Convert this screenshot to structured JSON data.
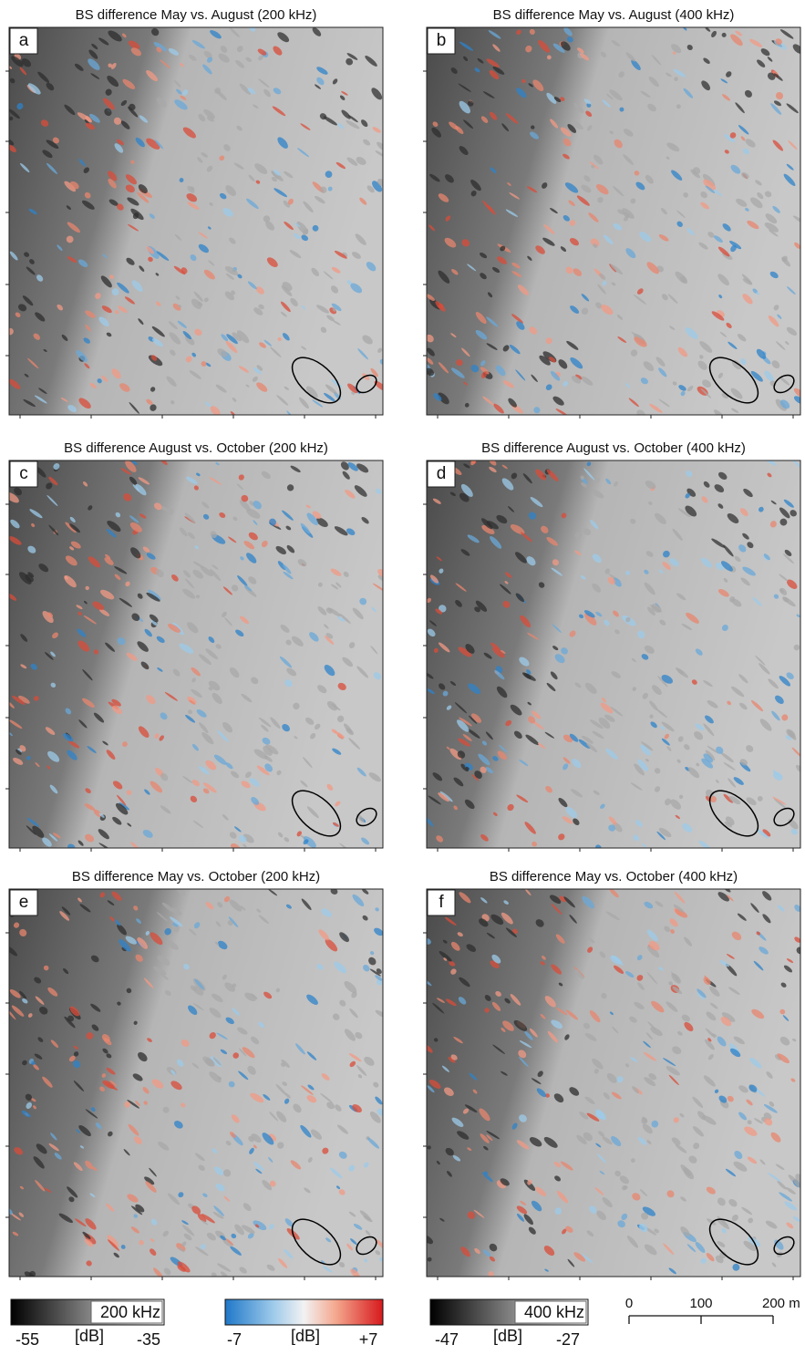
{
  "panels": [
    {
      "label": "a",
      "title": "BS difference May vs. August (200 kHz)"
    },
    {
      "label": "b",
      "title": "BS difference May vs. August (400 kHz)"
    },
    {
      "label": "c",
      "title": "BS difference August vs. October (200 kHz)"
    },
    {
      "label": "d",
      "title": "BS difference August vs. October (400 kHz)"
    },
    {
      "label": "e",
      "title": "BS difference May vs. October (200 kHz)"
    },
    {
      "label": "f",
      "title": "BS difference May vs. October (400 kHz)"
    }
  ],
  "colorbars": [
    {
      "title": "200 kHz",
      "unit": "[dB]",
      "min_label": "-55",
      "max_label": "-35"
    },
    {
      "unit": "[dB]",
      "min_label": "-7",
      "max_label": "+7"
    },
    {
      "title": "400 kHz",
      "unit": "[dB]",
      "min_label": "-47",
      "max_label": "-27"
    }
  ],
  "scale_bar": {
    "labels": [
      "0",
      "100",
      "200 m"
    ]
  }
}
